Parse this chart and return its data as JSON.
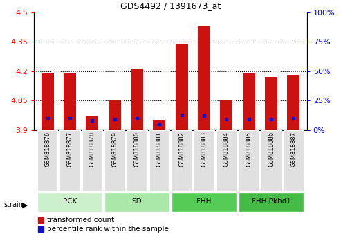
{
  "title": "GDS4492 / 1391673_at",
  "samples": [
    "GSM818876",
    "GSM818877",
    "GSM818878",
    "GSM818879",
    "GSM818880",
    "GSM818881",
    "GSM818882",
    "GSM818883",
    "GSM818884",
    "GSM818885",
    "GSM818886",
    "GSM818887"
  ],
  "red_values": [
    4.19,
    4.19,
    3.97,
    4.05,
    4.21,
    3.95,
    4.34,
    4.43,
    4.05,
    4.19,
    4.17,
    4.18
  ],
  "blue_percentile": [
    10,
    10,
    8,
    9,
    10,
    5,
    13,
    12,
    9,
    9,
    9,
    10
  ],
  "groups": [
    {
      "label": "PCK",
      "start": 0,
      "end": 2,
      "color": "#ccf0cc"
    },
    {
      "label": "SD",
      "start": 3,
      "end": 5,
      "color": "#aae8aa"
    },
    {
      "label": "FHH",
      "start": 6,
      "end": 8,
      "color": "#55cc55"
    },
    {
      "label": "FHH.Pkhd1",
      "start": 9,
      "end": 11,
      "color": "#44bb44"
    }
  ],
  "ylim_left": [
    3.9,
    4.5
  ],
  "ylim_right": [
    0,
    100
  ],
  "yticks_left": [
    3.9,
    4.05,
    4.2,
    4.35,
    4.5
  ],
  "yticks_right": [
    0,
    25,
    50,
    75,
    100
  ],
  "bar_color": "#cc1111",
  "blue_color": "#1111cc",
  "legend_labels": [
    "transformed count",
    "percentile rank within the sample"
  ]
}
